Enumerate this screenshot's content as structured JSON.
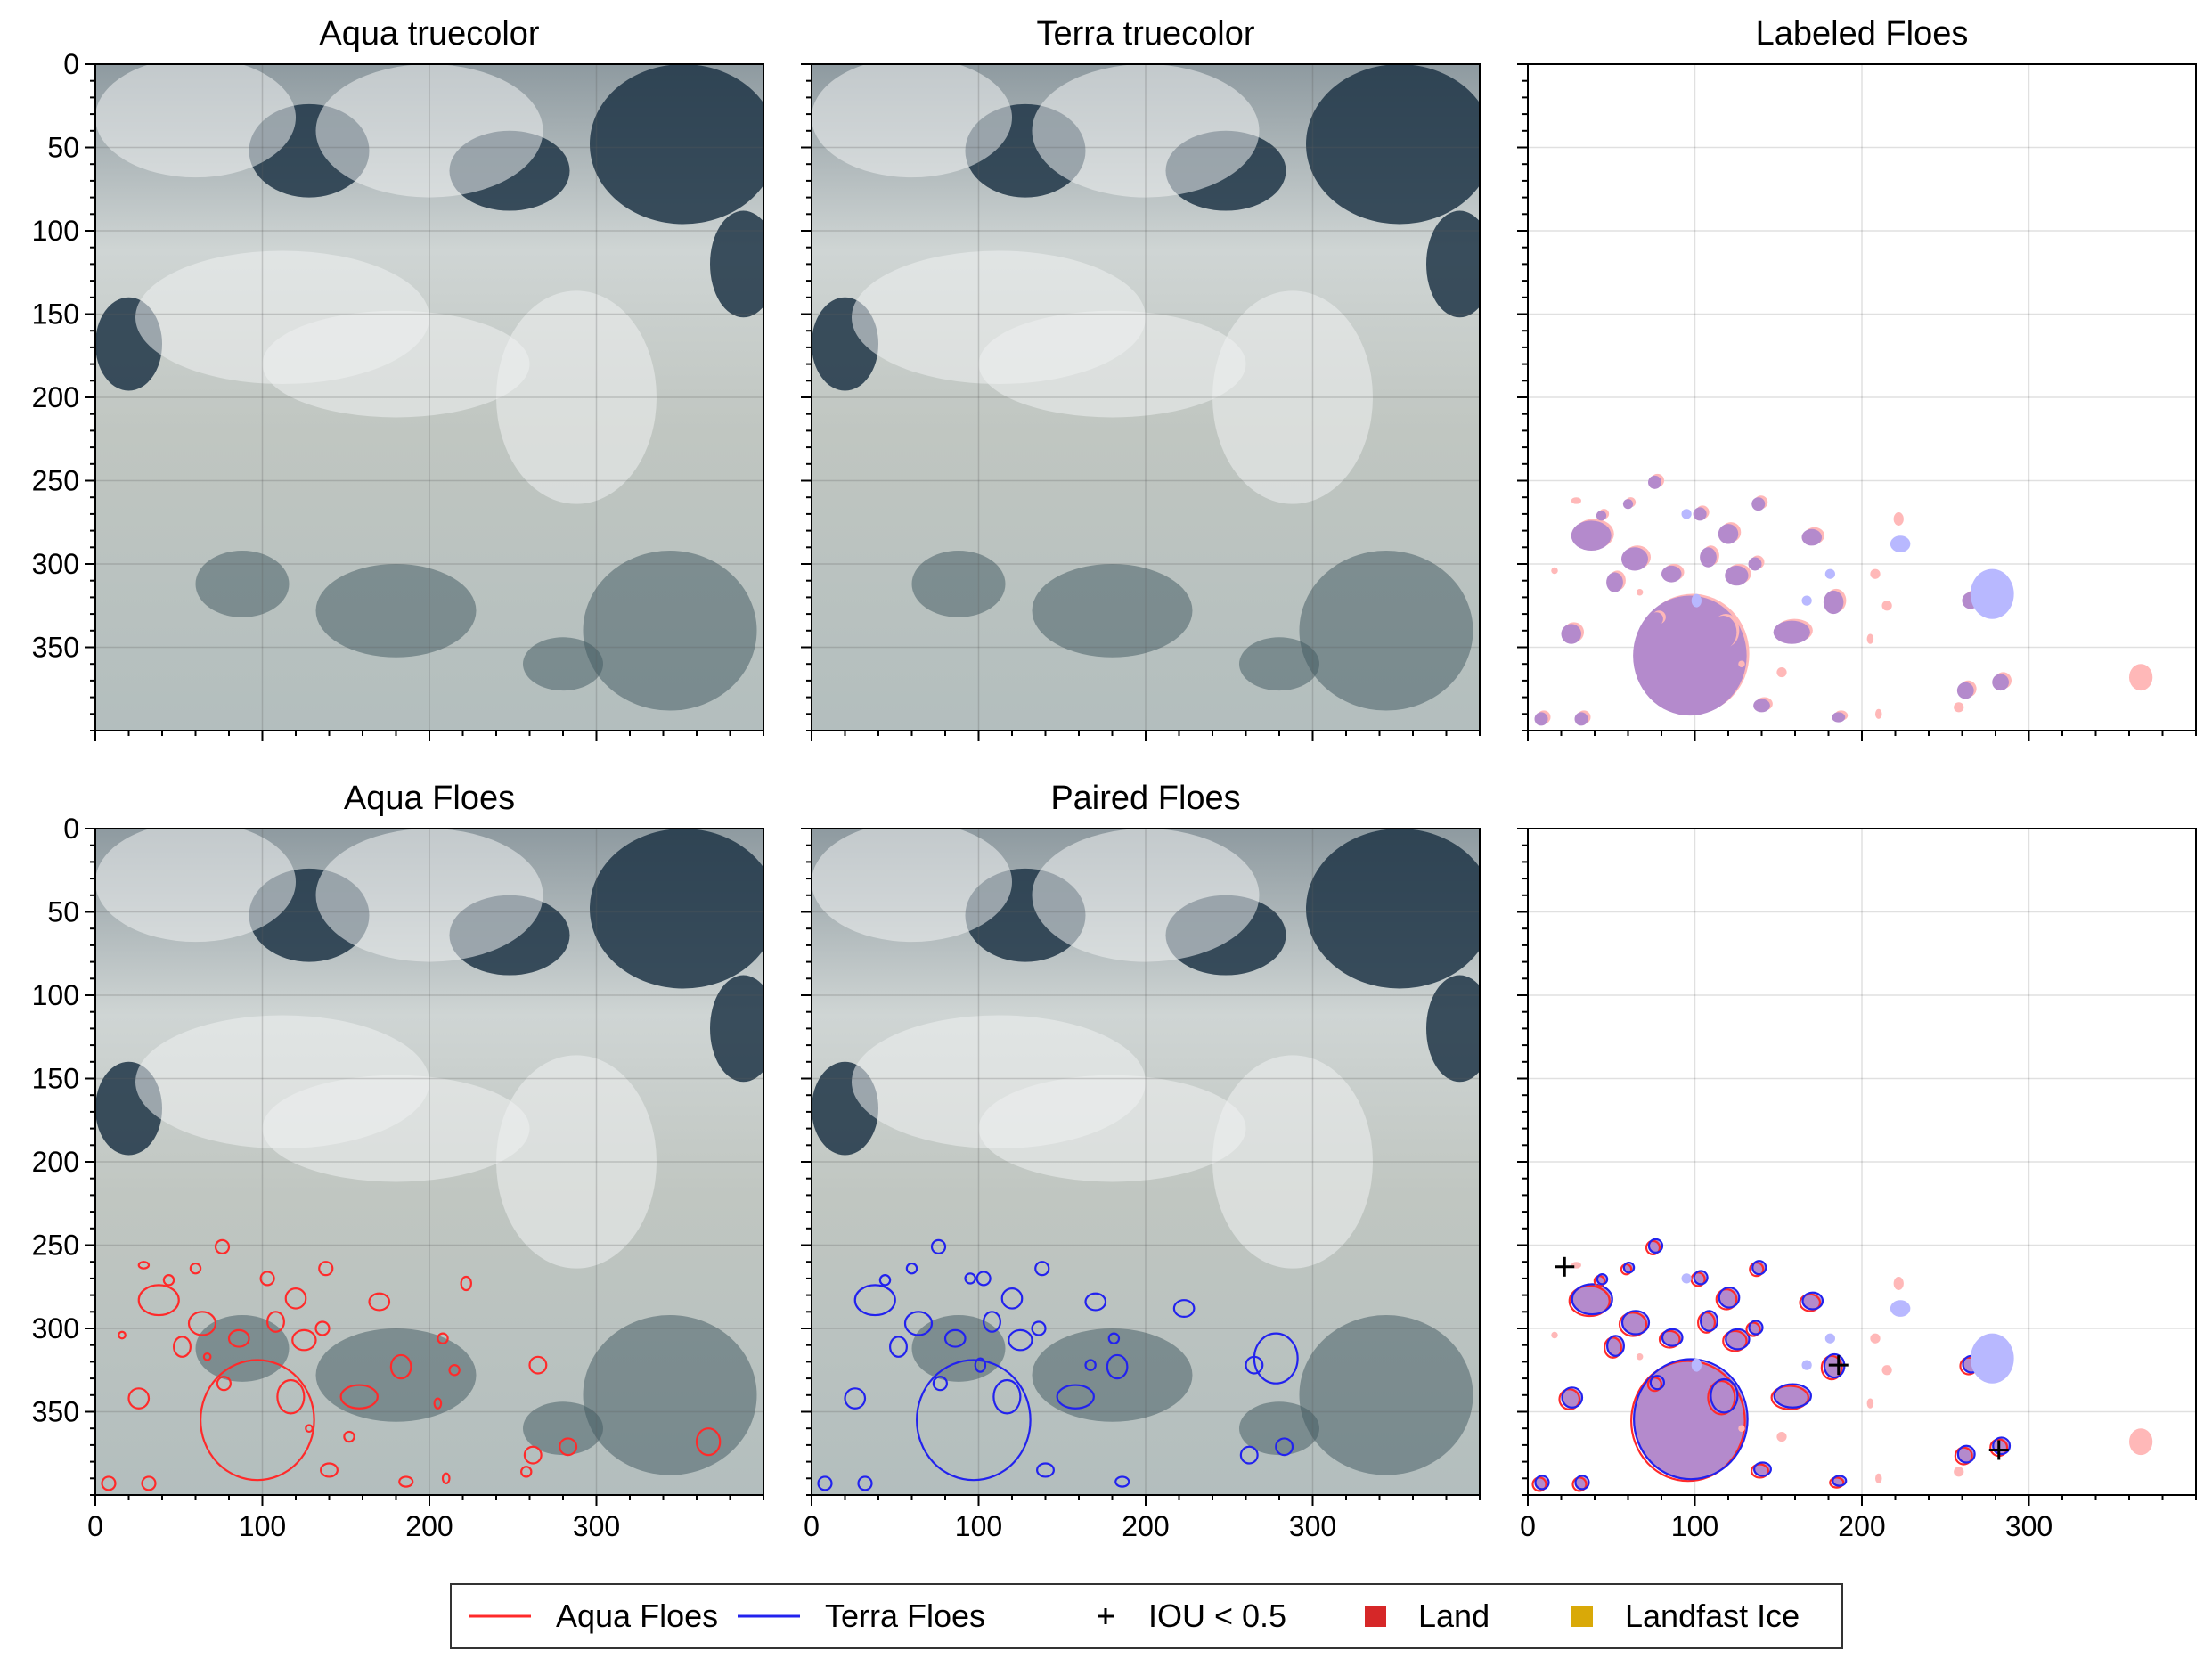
{
  "colors": {
    "aqua": "#ff2a2a",
    "terra": "#2222ee",
    "iou_marker": "#000000",
    "land": "#d62728",
    "landfast_ice": "#d9a908",
    "aqua_fill": "#ffb8b8",
    "terra_fill": "#b8b8ff",
    "overlap_fill": "#b48acc",
    "sea_ice_image": "#c9cfcc",
    "open_water_image": "#1f3547"
  },
  "chart_data": {
    "type": "image-grid",
    "axes": {
      "xlim": [
        0,
        400
      ],
      "ylim": [
        400,
        0
      ],
      "x_ticks": [
        0,
        100,
        200,
        300
      ],
      "y_ticks": [
        0,
        50,
        100,
        150,
        200,
        250,
        300,
        350
      ],
      "grid": true
    },
    "panels": [
      {
        "id": "aqua-truecolor",
        "title": "Aqua truecolor",
        "content": "image",
        "outlines": "none"
      },
      {
        "id": "terra-truecolor",
        "title": "Terra truecolor",
        "content": "image",
        "outlines": "none"
      },
      {
        "id": "labeled-floes",
        "title": "Labeled Floes",
        "content": "labels",
        "outlines": "none"
      },
      {
        "id": "aqua-floes",
        "title": "Aqua Floes",
        "content": "image",
        "outlines": "aqua"
      },
      {
        "id": "paired-floes",
        "title": "Paired Floes",
        "content": "image",
        "outlines": "terra"
      },
      {
        "id": "pair-overlay",
        "title": "",
        "content": "labels",
        "outlines": "both"
      }
    ],
    "floes": [
      {
        "x": 97,
        "y": 355,
        "rx": 34,
        "ry": 36,
        "kind": "both"
      },
      {
        "x": 38,
        "y": 283,
        "rx": 12,
        "ry": 9,
        "kind": "both"
      },
      {
        "x": 64,
        "y": 297,
        "rx": 8,
        "ry": 7,
        "kind": "both"
      },
      {
        "x": 86,
        "y": 306,
        "rx": 6,
        "ry": 5,
        "kind": "both"
      },
      {
        "x": 108,
        "y": 296,
        "rx": 5,
        "ry": 6,
        "kind": "both"
      },
      {
        "x": 120,
        "y": 282,
        "rx": 6,
        "ry": 6,
        "kind": "both"
      },
      {
        "x": 125,
        "y": 307,
        "rx": 7,
        "ry": 6,
        "kind": "both"
      },
      {
        "x": 52,
        "y": 311,
        "rx": 5,
        "ry": 6,
        "kind": "both"
      },
      {
        "x": 26,
        "y": 342,
        "rx": 6,
        "ry": 6,
        "kind": "both"
      },
      {
        "x": 77,
        "y": 333,
        "rx": 4,
        "ry": 4,
        "kind": "both"
      },
      {
        "x": 117,
        "y": 341,
        "rx": 8,
        "ry": 10,
        "kind": "both"
      },
      {
        "x": 158,
        "y": 341,
        "rx": 11,
        "ry": 7,
        "kind": "both"
      },
      {
        "x": 170,
        "y": 284,
        "rx": 6,
        "ry": 5,
        "kind": "both"
      },
      {
        "x": 136,
        "y": 300,
        "rx": 4,
        "ry": 4,
        "kind": "both"
      },
      {
        "x": 140,
        "y": 385,
        "rx": 5,
        "ry": 4,
        "kind": "both"
      },
      {
        "x": 265,
        "y": 322,
        "rx": 5,
        "ry": 5,
        "kind": "both"
      },
      {
        "x": 262,
        "y": 376,
        "rx": 5,
        "ry": 5,
        "kind": "both"
      },
      {
        "x": 283,
        "y": 371,
        "rx": 5,
        "ry": 5,
        "kind": "both"
      },
      {
        "x": 76,
        "y": 251,
        "rx": 4,
        "ry": 4,
        "kind": "both"
      },
      {
        "x": 60,
        "y": 264,
        "rx": 3,
        "ry": 3,
        "kind": "both"
      },
      {
        "x": 8,
        "y": 393,
        "rx": 4,
        "ry": 4,
        "kind": "both"
      },
      {
        "x": 32,
        "y": 393,
        "rx": 4,
        "ry": 4,
        "kind": "both"
      },
      {
        "x": 186,
        "y": 392,
        "rx": 4,
        "ry": 3,
        "kind": "both"
      },
      {
        "x": 103,
        "y": 270,
        "rx": 4,
        "ry": 4,
        "kind": "both"
      },
      {
        "x": 44,
        "y": 271,
        "rx": 3,
        "ry": 3,
        "kind": "both"
      },
      {
        "x": 183,
        "y": 323,
        "rx": 6,
        "ry": 7,
        "kind": "both"
      },
      {
        "x": 138,
        "y": 264,
        "rx": 4,
        "ry": 4,
        "kind": "both"
      },
      {
        "x": 278,
        "y": 318,
        "rx": 13,
        "ry": 15,
        "kind": "terra"
      },
      {
        "x": 223,
        "y": 288,
        "rx": 6,
        "ry": 5,
        "kind": "terra"
      },
      {
        "x": 95,
        "y": 270,
        "rx": 3,
        "ry": 3,
        "kind": "terra"
      },
      {
        "x": 101,
        "y": 322,
        "rx": 3,
        "ry": 4,
        "kind": "terra"
      },
      {
        "x": 167,
        "y": 322,
        "rx": 3,
        "ry": 3,
        "kind": "terra"
      },
      {
        "x": 181,
        "y": 306,
        "rx": 3,
        "ry": 3,
        "kind": "terra"
      },
      {
        "x": 367,
        "y": 368,
        "rx": 7,
        "ry": 8,
        "kind": "aqua"
      },
      {
        "x": 208,
        "y": 306,
        "rx": 3,
        "ry": 3,
        "kind": "aqua"
      },
      {
        "x": 215,
        "y": 325,
        "rx": 3,
        "ry": 3,
        "kind": "aqua"
      },
      {
        "x": 222,
        "y": 273,
        "rx": 3,
        "ry": 4,
        "kind": "aqua"
      },
      {
        "x": 258,
        "y": 386,
        "rx": 3,
        "ry": 3,
        "kind": "aqua"
      },
      {
        "x": 210,
        "y": 390,
        "rx": 2,
        "ry": 3,
        "kind": "aqua"
      },
      {
        "x": 29,
        "y": 262,
        "rx": 3,
        "ry": 2,
        "kind": "aqua"
      },
      {
        "x": 16,
        "y": 304,
        "rx": 2,
        "ry": 2,
        "kind": "aqua"
      },
      {
        "x": 67,
        "y": 317,
        "rx": 2,
        "ry": 2,
        "kind": "aqua"
      },
      {
        "x": 152,
        "y": 365,
        "rx": 3,
        "ry": 3,
        "kind": "aqua"
      },
      {
        "x": 128,
        "y": 360,
        "rx": 2,
        "ry": 2,
        "kind": "aqua"
      },
      {
        "x": 205,
        "y": 345,
        "rx": 2,
        "ry": 3,
        "kind": "aqua"
      }
    ],
    "iou_below_threshold": [
      {
        "x": 22,
        "y": 263
      },
      {
        "x": 186,
        "y": 322
      },
      {
        "x": 282,
        "y": 373
      }
    ]
  },
  "legend": {
    "items": [
      {
        "label": "Aqua Floes",
        "marker": "line",
        "color": "#ff2a2a"
      },
      {
        "label": "Terra Floes",
        "marker": "line",
        "color": "#2222ee"
      },
      {
        "label": "IOU < 0.5",
        "marker": "plus",
        "color": "#000000"
      },
      {
        "label": "Land",
        "marker": "square",
        "color": "#d62728"
      },
      {
        "label": "Landfast Ice",
        "marker": "square",
        "color": "#d9a908"
      }
    ]
  }
}
